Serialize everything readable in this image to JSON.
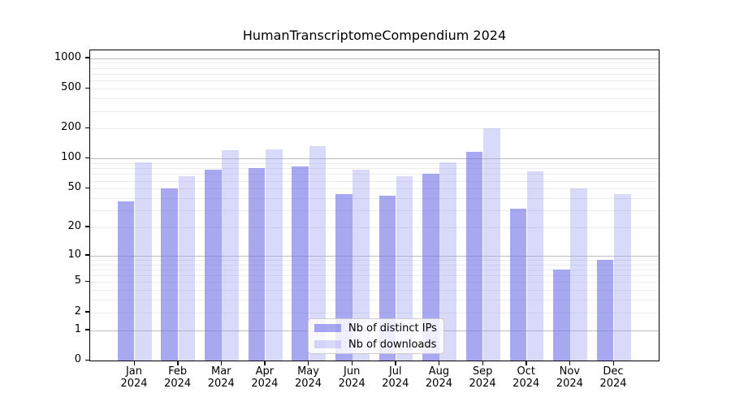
{
  "chart_data": {
    "type": "bar",
    "title": "HumanTranscriptomeCompendium 2024",
    "categories": [
      "Jan 2024",
      "Feb 2024",
      "Mar 2024",
      "Apr 2024",
      "May 2024",
      "Jun 2024",
      "Jul 2024",
      "Aug 2024",
      "Sep 2024",
      "Oct 2024",
      "Nov 2024",
      "Dec 2024"
    ],
    "month_labels": [
      "Jan",
      "Feb",
      "Mar",
      "Apr",
      "May",
      "Jun",
      "Jul",
      "Aug",
      "Sep",
      "Oct",
      "Nov",
      "Dec"
    ],
    "year_label": "2024",
    "series": [
      {
        "name": "Nb of distinct IPs",
        "color": "rgba(110,110,230,0.60)",
        "values": [
          37,
          50,
          78,
          81,
          83,
          44,
          42,
          70,
          118,
          31,
          7,
          9
        ]
      },
      {
        "name": "Nb of downloads",
        "color": "rgba(146,146,240,0.35)",
        "values": [
          92,
          66,
          121,
          123,
          133,
          77,
          66,
          92,
          202,
          74,
          50,
          44
        ]
      }
    ],
    "y_scale": "log1p",
    "ylim": [
      0,
      1200
    ],
    "y_ticks": [
      0,
      1,
      2,
      5,
      10,
      20,
      50,
      100,
      200,
      500,
      1000
    ],
    "y_major_gridlines": [
      1,
      10,
      100,
      1000
    ],
    "y_minor_gridlines": [
      2,
      3,
      4,
      5,
      6,
      7,
      8,
      9,
      20,
      30,
      40,
      50,
      60,
      70,
      80,
      90,
      200,
      300,
      400,
      500,
      600,
      700,
      800,
      900
    ],
    "xlabel": "",
    "ylabel": "",
    "grid": true,
    "legend_position": "lower center"
  }
}
